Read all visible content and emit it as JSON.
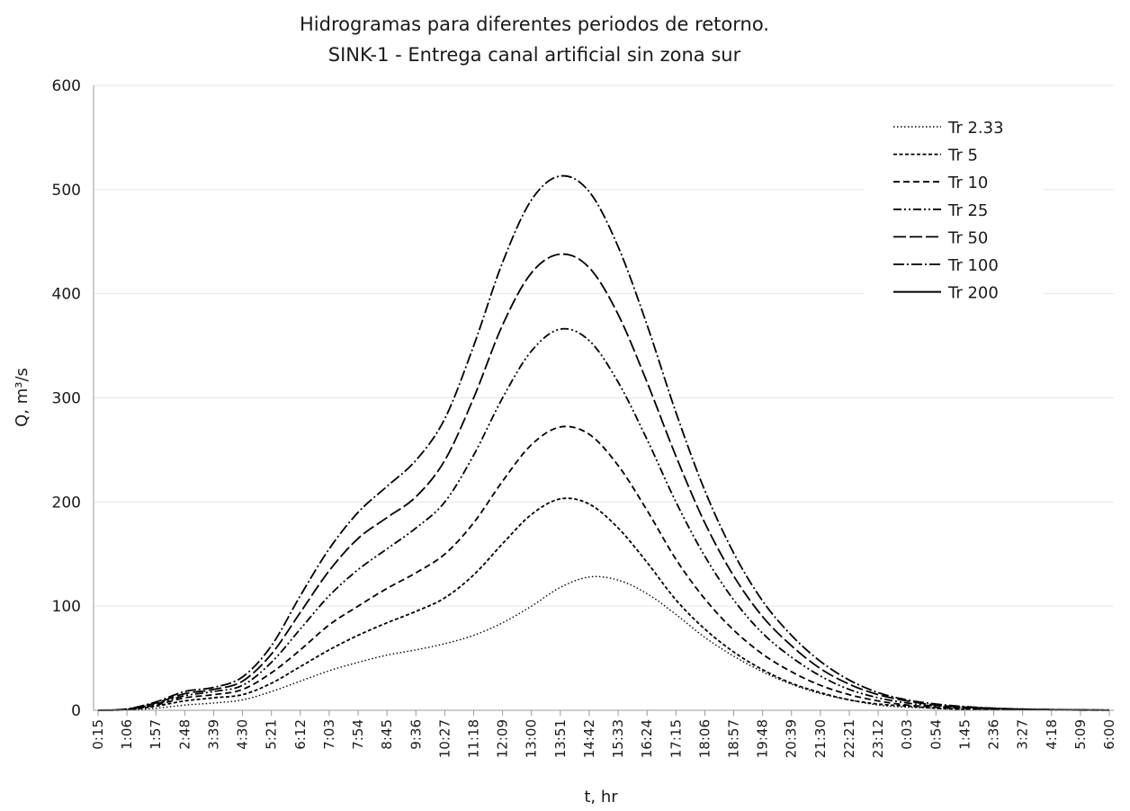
{
  "chart_data": {
    "type": "line",
    "title": "Hidrogramas para diferentes periodos de retorno.",
    "subtitle": "SINK-1 - Entrega canal artificial sin zona sur",
    "xlabel": "t, hr",
    "ylabel": "Q, m³/s",
    "ylim": [
      0,
      600
    ],
    "yticks": [
      "0",
      "100",
      "200",
      "300",
      "400",
      "500",
      "600"
    ],
    "x_tick_labels": [
      "0:15",
      "1:06",
      "1:57",
      "2:48",
      "3:39",
      "4:30",
      "5:21",
      "6:12",
      "7:03",
      "7:54",
      "8:45",
      "9:36",
      "10:27",
      "11:18",
      "12:09",
      "13:00",
      "13:51",
      "14:42",
      "15:33",
      "16:24",
      "17:15",
      "18:06",
      "18:57",
      "19:48",
      "20:39",
      "21:30",
      "22:21",
      "23:12",
      "0:03",
      "0:54",
      "1:45",
      "2:36",
      "3:27",
      "4:18",
      "5:09",
      "6:00"
    ],
    "grid": "horizontal",
    "legend_position": "top-right",
    "series": [
      {
        "name": "Tr 2.33",
        "dash": "1.5 2.5",
        "values": [
          0,
          0.3,
          2,
          5,
          7,
          10,
          18,
          28,
          38,
          46,
          53,
          58,
          64,
          72,
          84,
          100,
          118,
          128,
          125,
          112,
          92,
          70,
          52,
          37,
          25,
          16,
          10,
          5,
          3,
          2,
          1,
          0.5,
          0.3,
          0.2,
          0.1,
          0.1
        ]
      },
      {
        "name": "Tr 5",
        "dash": "4 2.5",
        "values": [
          0,
          0.5,
          4,
          9,
          12,
          15,
          26,
          42,
          58,
          72,
          84,
          95,
          108,
          130,
          160,
          188,
          203,
          198,
          175,
          142,
          106,
          78,
          56,
          39,
          26,
          17,
          10,
          6,
          4,
          2,
          1,
          0.7,
          0.4,
          0.3,
          0.2,
          0.1
        ]
      },
      {
        "name": "Tr 10",
        "dash": "7 4",
        "values": [
          0,
          0.7,
          5,
          12,
          15,
          20,
          36,
          58,
          82,
          100,
          117,
          132,
          150,
          180,
          220,
          255,
          272,
          265,
          235,
          192,
          145,
          107,
          77,
          54,
          37,
          24,
          15,
          9,
          5,
          3,
          2,
          1,
          0.6,
          0.4,
          0.2,
          0.1
        ]
      },
      {
        "name": "Tr 25",
        "dash": "9 3 2 3 2 3",
        "values": [
          0,
          0.9,
          6,
          14,
          18,
          24,
          46,
          78,
          110,
          135,
          155,
          175,
          200,
          245,
          300,
          345,
          366,
          355,
          315,
          260,
          200,
          148,
          106,
          74,
          51,
          33,
          20,
          12,
          7,
          4,
          2.5,
          1.5,
          0.8,
          0.5,
          0.3,
          0.2
        ]
      },
      {
        "name": "Tr 50",
        "dash": "14 4",
        "values": [
          0,
          1.1,
          7,
          16,
          20,
          28,
          54,
          94,
          134,
          165,
          185,
          205,
          240,
          300,
          370,
          420,
          438,
          425,
          380,
          315,
          244,
          180,
          129,
          90,
          62,
          40,
          25,
          15,
          9,
          5,
          3,
          1.8,
          1,
          0.6,
          0.3,
          0.2
        ]
      },
      {
        "name": "Tr 100",
        "dash": "12 3 2 3",
        "values": [
          0,
          1.3,
          8,
          18,
          22,
          32,
          62,
          110,
          155,
          190,
          215,
          240,
          280,
          350,
          430,
          490,
          513,
          498,
          445,
          370,
          286,
          211,
          151,
          105,
          72,
          47,
          29,
          17,
          10,
          6,
          3.5,
          2,
          1.1,
          0.7,
          0.4,
          0.2
        ]
      },
      {
        "name": "Tr 200",
        "dash": "",
        "values": []
      }
    ]
  }
}
